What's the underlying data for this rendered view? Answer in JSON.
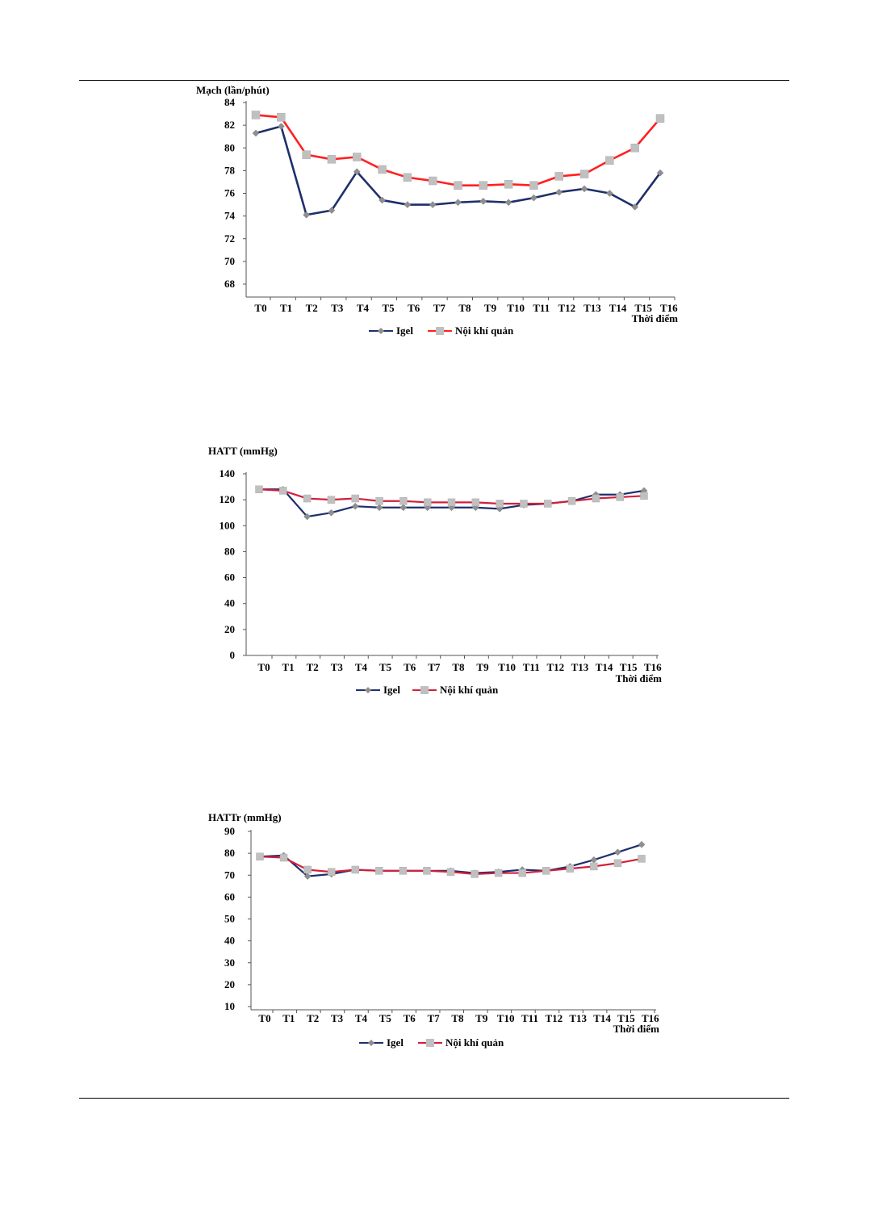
{
  "page": {
    "top_rule": "",
    "bottom_rule": ""
  },
  "chart_data": [
    {
      "type": "line",
      "title": "Mạch (lần/phút)",
      "xlabel": "Thời điểm",
      "ylabel": "",
      "categories": [
        "T0",
        "T1",
        "T2",
        "T3",
        "T4",
        "T5",
        "T6",
        "T7",
        "T8",
        "T9",
        "T10",
        "T11",
        "T12",
        "T13",
        "T14",
        "T15",
        "T16"
      ],
      "ylim": [
        68,
        84
      ],
      "yticks": [
        84,
        82,
        80,
        78,
        76,
        74,
        72,
        70,
        68
      ],
      "legend": "bottom",
      "grid": false,
      "series": [
        {
          "name": "Igel",
          "color": "#1f2f6b",
          "marker": "diamond",
          "values": [
            81.3,
            81.9,
            74.1,
            74.5,
            77.9,
            75.4,
            75.0,
            75.0,
            75.2,
            75.3,
            75.2,
            75.6,
            76.1,
            76.4,
            76.0,
            74.8,
            77.8
          ]
        },
        {
          "name": "Nội khí quản",
          "color": "#ff2020",
          "marker": "square",
          "values": [
            82.9,
            82.7,
            79.4,
            79.0,
            79.2,
            78.1,
            77.4,
            77.1,
            76.7,
            76.7,
            76.8,
            76.7,
            77.5,
            77.7,
            78.9,
            80.0,
            82.6
          ]
        }
      ]
    },
    {
      "type": "line",
      "title": "HATT (mmHg)",
      "xlabel": "Thời điểm",
      "ylabel": "",
      "categories": [
        "T0",
        "T1",
        "T2",
        "T3",
        "T4",
        "T5",
        "T6",
        "T7",
        "T8",
        "T9",
        "T10",
        "T11",
        "T12",
        "T13",
        "T14",
        "T15",
        "T16"
      ],
      "ylim": [
        0,
        140
      ],
      "yticks": [
        140,
        120,
        100,
        80,
        60,
        40,
        20,
        0
      ],
      "legend": "bottom",
      "grid": false,
      "series": [
        {
          "name": "Igel",
          "color": "#1f2f6b",
          "marker": "diamond",
          "values": [
            128,
            128,
            107,
            110,
            115,
            114,
            114,
            114,
            114,
            114,
            113,
            116,
            117,
            119,
            124,
            124,
            127
          ]
        },
        {
          "name": "Nội khí quản",
          "color": "#d21f3c",
          "marker": "square",
          "values": [
            128,
            127,
            121,
            120,
            121,
            119,
            119,
            118,
            118,
            118,
            117,
            117,
            117,
            119,
            121,
            122,
            123
          ]
        }
      ]
    },
    {
      "type": "line",
      "title": "HATTr (mmHg)",
      "xlabel": "Thời điểm",
      "ylabel": "",
      "categories": [
        "T0",
        "T1",
        "T2",
        "T3",
        "T4",
        "T5",
        "T6",
        "T7",
        "T8",
        "T9",
        "T10",
        "T11",
        "T12",
        "T13",
        "T14",
        "T15",
        "T16"
      ],
      "ylim": [
        10,
        90
      ],
      "yticks": [
        90,
        80,
        70,
        60,
        50,
        40,
        30,
        20,
        10
      ],
      "legend": "bottom",
      "grid": false,
      "series": [
        {
          "name": "Igel",
          "color": "#1f2f6b",
          "marker": "diamond",
          "values": [
            78.5,
            79,
            69.5,
            70.5,
            72.5,
            72,
            72,
            72,
            72,
            71,
            71.5,
            72.5,
            72,
            74,
            77,
            80.5,
            84
          ]
        },
        {
          "name": "Nội khí quản",
          "color": "#d21f3c",
          "marker": "square",
          "values": [
            78.5,
            78,
            72.5,
            71.5,
            72.5,
            72,
            72,
            72,
            71.5,
            70.5,
            71,
            71,
            72,
            73,
            74,
            75.5,
            77.5
          ]
        }
      ]
    }
  ]
}
